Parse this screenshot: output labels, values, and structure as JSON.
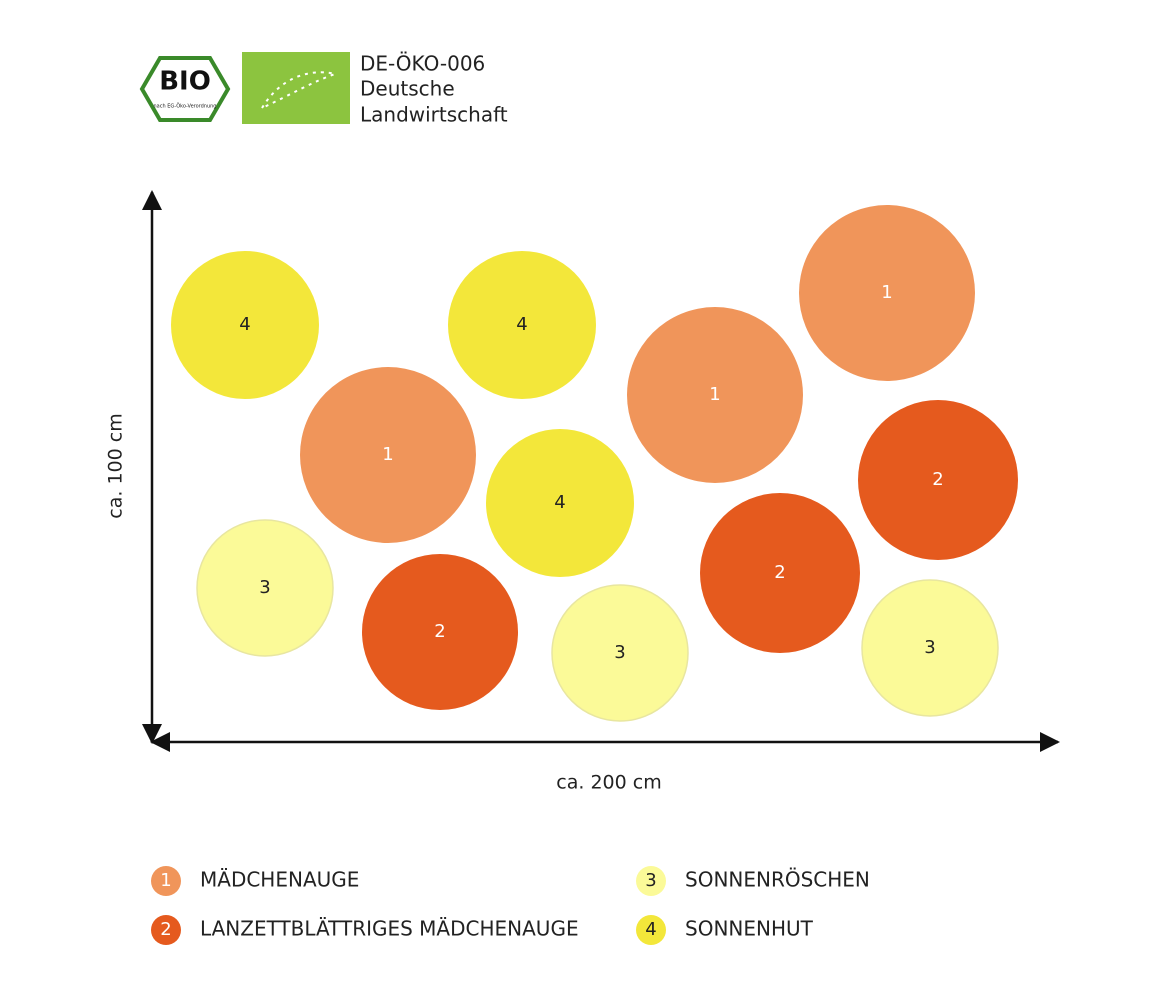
{
  "certification": {
    "bio_logo": "BIO",
    "bio_logo_note": "nach EG-Öko-Verordnung",
    "code": "DE-ÖKO-006",
    "origin_line1": "Deutsche",
    "origin_line2": "Landwirtschaft"
  },
  "axes": {
    "y_label": "ca. 100 cm",
    "x_label": "ca. 200 cm"
  },
  "plants": [
    "4",
    "4",
    "1",
    "1",
    "1",
    "4",
    "2",
    "3",
    "2",
    "2",
    "3",
    "3"
  ],
  "legend": [
    {
      "number": "1",
      "name": "MÄDCHENAUGE",
      "color": "#f0955a"
    },
    {
      "number": "2",
      "name": "LANZETTBLÄTTRIGES MÄDCHENAUGE",
      "color": "#e55a1e"
    },
    {
      "number": "3",
      "name": "SONNENRÖSCHEN",
      "color": "#fbfa98"
    },
    {
      "number": "4",
      "name": "SONNENHUT",
      "color": "#f3e73a"
    }
  ]
}
